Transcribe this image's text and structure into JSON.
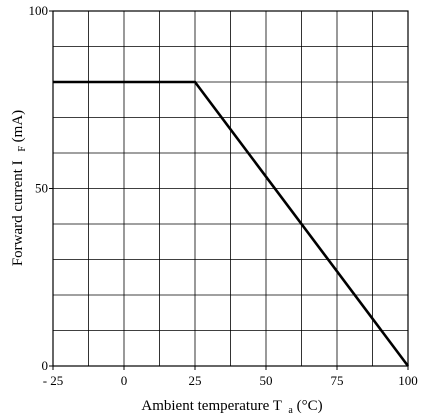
{
  "chart_data": {
    "type": "line",
    "title": "",
    "xlabel": {
      "prefix": "Ambient temperature T",
      "subscript": "a",
      "suffix": " (°C)"
    },
    "ylabel": {
      "prefix": "Forward current I",
      "subscript": "F",
      "suffix": " (mA)"
    },
    "xlim": [
      -25,
      100
    ],
    "ylim": [
      0,
      100
    ],
    "x_ticks": [
      -25,
      0,
      25,
      50,
      75,
      100
    ],
    "x_tick_labels": [
      "- 25",
      "0",
      "25",
      "50",
      "75",
      "100"
    ],
    "y_ticks": [
      0,
      50,
      100
    ],
    "y_tick_labels": [
      "0",
      "50",
      "100"
    ],
    "x_grid_step": 12.5,
    "y_grid_step": 10,
    "grid": true,
    "series": [
      {
        "x": [
          -25,
          25,
          100
        ],
        "y": [
          80,
          80,
          0
        ],
        "color": "#000000"
      }
    ]
  }
}
